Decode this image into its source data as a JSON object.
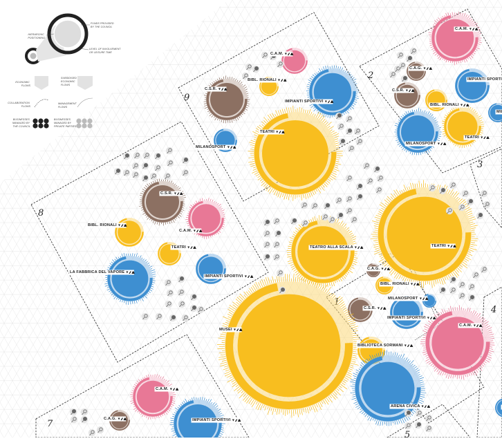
{
  "legend": {
    "hierarchic": [
      "HIERARCHIC",
      "POSITIONING"
    ],
    "funds": [
      "FUNDS PROVIDED",
      "BY THE COUNCIL"
    ],
    "involvement": [
      "LEVEL OF INVOLVEMENT",
      "OR LEISURE TIME"
    ],
    "economic": [
      "ECONOMIC",
      "FLOWS"
    ],
    "subsidised": [
      "SUBSIDISED",
      "ECONOMIC",
      "FLOWS"
    ],
    "collaboration": [
      "COLLABORATION",
      "FLOWS"
    ],
    "management": [
      "MANAGEMENT",
      "FLOWS"
    ],
    "council": [
      "BUSINESSES",
      "MANAGED BY",
      "THE COUNCIL"
    ],
    "private": [
      "BUSINESSES",
      "MANAGED BY",
      "PRIVATE PARTIES"
    ]
  },
  "districts": [
    {
      "id": "d9",
      "label": "9"
    },
    {
      "id": "d2",
      "label": "2"
    },
    {
      "id": "d3",
      "label": "3"
    },
    {
      "id": "d8",
      "label": "8"
    },
    {
      "id": "d1",
      "label": "1"
    },
    {
      "id": "d4",
      "label": "4"
    },
    {
      "id": "d7",
      "label": "7"
    },
    {
      "id": "d5",
      "label": "5"
    }
  ],
  "colors": {
    "yellow": "#F8BE1F",
    "yellow_light": "#FCD97A",
    "blue": "#3E8FD1",
    "blue_light": "#8DBCE6",
    "pink": "#E87896",
    "pink_light": "#F6BDCD",
    "brown": "#8C7062",
    "brown_light": "#C4B1A6",
    "grid": "#DADADA"
  },
  "bubbles": [
    {
      "name": "C.A.M.",
      "type": "pink",
      "size": 19
    },
    {
      "name": "BIBL. RIONALI",
      "type": "yellow",
      "size": 14
    },
    {
      "name": "C.S.R.",
      "type": "brown",
      "size": 30
    },
    {
      "name": "IMPIANTI SPORTIVI",
      "type": "blue",
      "size": 34
    },
    {
      "name": "TEATRI",
      "type": "yellow",
      "size": 60
    },
    {
      "name": "MILANOSPORT",
      "type": "blue",
      "size": 17
    },
    {
      "name": "C.A.M.",
      "type": "pink",
      "size": 34
    },
    {
      "name": "C.A.G.",
      "type": "brown",
      "size": 14
    },
    {
      "name": "C.S.R.",
      "type": "brown",
      "size": 19
    },
    {
      "name": "BIBL. RIONALI",
      "type": "yellow",
      "size": 16
    },
    {
      "name": "IMPIANTI SPORTIVI",
      "type": "blue",
      "size": 25
    },
    {
      "name": "MILANOSPORT",
      "type": "blue",
      "size": 30
    },
    {
      "name": "TEATRI",
      "type": "yellow",
      "size": 27
    },
    {
      "name": "MILANOSPORT",
      "type": "blue",
      "size": 14
    },
    {
      "name": "C.S.R.",
      "type": "brown",
      "size": 30
    },
    {
      "name": "C.A.M.",
      "type": "pink",
      "size": 26
    },
    {
      "name": "BIBL. RIONALI",
      "type": "yellow",
      "size": 21
    },
    {
      "name": "TEATRI",
      "type": "yellow",
      "size": 17
    },
    {
      "name": "LA FABBRICA DEL VAPORE",
      "type": "blue",
      "size": 33
    },
    {
      "name": "IMPIANTI SPORTIVI",
      "type": "blue",
      "size": 22
    },
    {
      "name": "TEATRO ALLA SCALA",
      "type": "yellow",
      "size": 46
    },
    {
      "name": "TEATRI",
      "type": "yellow",
      "size": 68
    },
    {
      "name": "C.A.G.",
      "type": "brown",
      "size": 10
    },
    {
      "name": "BIBL. RIONALI",
      "type": "yellow",
      "size": 13
    },
    {
      "name": "MILANOSPORT",
      "type": "blue",
      "size": 10
    },
    {
      "name": "C.S.R.",
      "type": "brown",
      "size": 18
    },
    {
      "name": "IMPIANTI SPORTIVI",
      "type": "blue",
      "size": 24
    },
    {
      "name": "MUSEI",
      "type": "yellow",
      "size": 93
    },
    {
      "name": "BIBLIOTECA SORMANI",
      "type": "yellow",
      "size": 20
    },
    {
      "name": "C.A.M.",
      "type": "pink",
      "size": 47
    },
    {
      "name": "ARENA CIVICA",
      "type": "blue",
      "size": 48
    },
    {
      "name": "C.A.M.",
      "type": "pink",
      "size": 29
    },
    {
      "name": "C.A.G.",
      "type": "brown",
      "size": 15
    },
    {
      "name": "IMPIANTI SPORTIVI",
      "type": "blue",
      "size": 35
    },
    {
      "name": "MILANOSP",
      "type": "blue",
      "size": 14
    }
  ]
}
